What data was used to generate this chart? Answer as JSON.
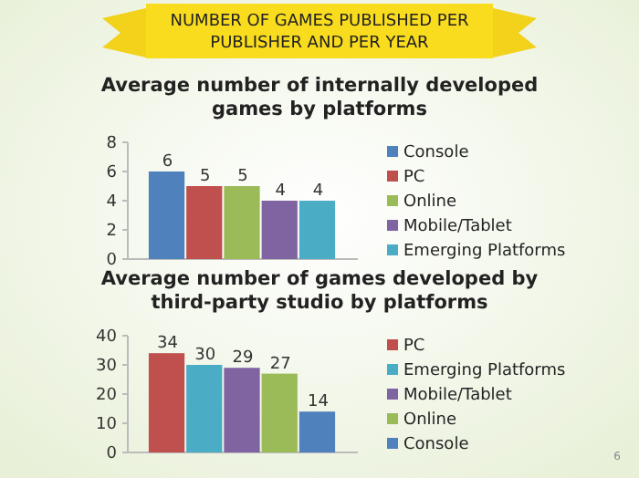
{
  "chart_data": [
    {
      "type": "bar",
      "title": "NUMBER OF GAMES PUBLISHED PER PUBLISHER AND PER YEAR",
      "subtitle": "Average number of internally developed games by platforms",
      "categories": [
        null
      ],
      "series": [
        {
          "name": "Console",
          "color": "#4f81bd",
          "values": [
            6
          ]
        },
        {
          "name": "PC",
          "color": "#c0504d",
          "values": [
            5
          ]
        },
        {
          "name": "Online",
          "color": "#9bbb59",
          "values": [
            5
          ]
        },
        {
          "name": "Mobile/Tablet",
          "color": "#8064a2",
          "values": [
            4
          ]
        },
        {
          "name": "Emerging Platforms",
          "color": "#4bacc6",
          "values": [
            4
          ]
        }
      ],
      "ylim": [
        0,
        8
      ],
      "yticks": [
        0,
        2,
        4,
        6,
        8
      ],
      "data_labels": true,
      "legend": "right"
    },
    {
      "type": "bar",
      "subtitle": "Average number of games developed by third-party studio by platforms",
      "categories": [
        null
      ],
      "series": [
        {
          "name": "PC",
          "color": "#c0504d",
          "values": [
            34
          ]
        },
        {
          "name": "Emerging Platforms",
          "color": "#4bacc6",
          "values": [
            30
          ]
        },
        {
          "name": "Mobile/Tablet",
          "color": "#8064a2",
          "values": [
            29
          ]
        },
        {
          "name": "Online",
          "color": "#9bbb59",
          "values": [
            27
          ]
        },
        {
          "name": "Console",
          "color": "#4f81bd",
          "values": [
            14
          ]
        }
      ],
      "ylim": [
        0,
        40
      ],
      "yticks": [
        0,
        10,
        20,
        30,
        40
      ],
      "data_labels": true,
      "legend": "right",
      "annotations": [
        "6"
      ]
    }
  ]
}
